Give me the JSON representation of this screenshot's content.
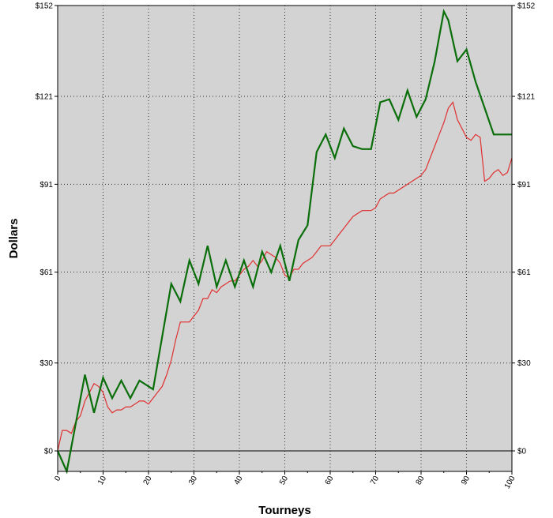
{
  "chart_data": {
    "type": "line",
    "xlabel": "Tourneys",
    "ylabel": "Dollars",
    "xlim": [
      0,
      100
    ],
    "ylim": [
      -7,
      152
    ],
    "x_ticks": [
      0,
      10,
      20,
      30,
      40,
      50,
      60,
      70,
      80,
      90,
      100
    ],
    "y_ticks": [
      0,
      30,
      61,
      91,
      121,
      152
    ],
    "y_tick_labels": [
      "$0",
      "$30",
      "$61",
      "$91",
      "$121",
      "$152"
    ],
    "grid": true,
    "background_color": "#d3d3d3",
    "series": [
      {
        "color": "#0a6e0a",
        "x": [
          0,
          2,
          6,
          8,
          10,
          12,
          14,
          16,
          18,
          21,
          25,
          27,
          29,
          31,
          33,
          35,
          37,
          39,
          41,
          43,
          45,
          47,
          49,
          51,
          53,
          55,
          57,
          59,
          61,
          63,
          65,
          67,
          69,
          71,
          73,
          75,
          77,
          79,
          81,
          83,
          85,
          86,
          88,
          90,
          92,
          94,
          96,
          98,
          100
        ],
        "y": [
          0,
          -7,
          26,
          13,
          25,
          18,
          24,
          18,
          24,
          21,
          57,
          51,
          65,
          57,
          70,
          56,
          65,
          56,
          65,
          56,
          68,
          61,
          70,
          58,
          72,
          77,
          102,
          108,
          100,
          110,
          104,
          103,
          103,
          119,
          120,
          113,
          123,
          114,
          120,
          133,
          150,
          147,
          133,
          137,
          126,
          117,
          108,
          108,
          108
        ]
      },
      {
        "color": "#e03030",
        "x": [
          0,
          1,
          2,
          3,
          4,
          5,
          6,
          7,
          8,
          9,
          10,
          11,
          12,
          13,
          14,
          15,
          16,
          17,
          18,
          19,
          20,
          21,
          22,
          23,
          24,
          25,
          26,
          27,
          28,
          29,
          30,
          31,
          32,
          33,
          34,
          35,
          36,
          37,
          38,
          39,
          40,
          41,
          42,
          43,
          44,
          45,
          46,
          47,
          48,
          49,
          50,
          51,
          52,
          53,
          54,
          55,
          56,
          57,
          58,
          59,
          60,
          61,
          62,
          63,
          64,
          65,
          66,
          67,
          68,
          69,
          70,
          71,
          72,
          73,
          74,
          75,
          76,
          77,
          78,
          79,
          80,
          81,
          82,
          83,
          84,
          85,
          86,
          87,
          88,
          89,
          90,
          91,
          92,
          93,
          94,
          95,
          96,
          97,
          98,
          99,
          100
        ],
        "y": [
          0,
          7,
          7,
          6,
          10,
          12,
          17,
          20,
          23,
          22,
          20,
          15,
          13,
          14,
          14,
          15,
          15,
          16,
          17,
          17,
          16,
          18,
          20,
          22,
          26,
          31,
          38,
          44,
          44,
          44,
          46,
          48,
          52,
          52,
          55,
          54,
          56,
          57,
          58,
          58,
          60,
          62,
          63,
          65,
          63,
          65,
          68,
          67,
          66,
          64,
          60,
          59,
          62,
          62,
          64,
          65,
          66,
          68,
          70,
          70,
          70,
          72,
          74,
          76,
          78,
          80,
          81,
          82,
          82,
          82,
          83,
          86,
          87,
          88,
          88,
          89,
          90,
          91,
          92,
          93,
          94,
          96,
          100,
          104,
          108,
          112,
          117,
          119,
          113,
          110,
          107,
          106,
          108,
          107,
          92,
          93,
          95,
          96,
          94,
          95,
          100
        ]
      }
    ]
  }
}
